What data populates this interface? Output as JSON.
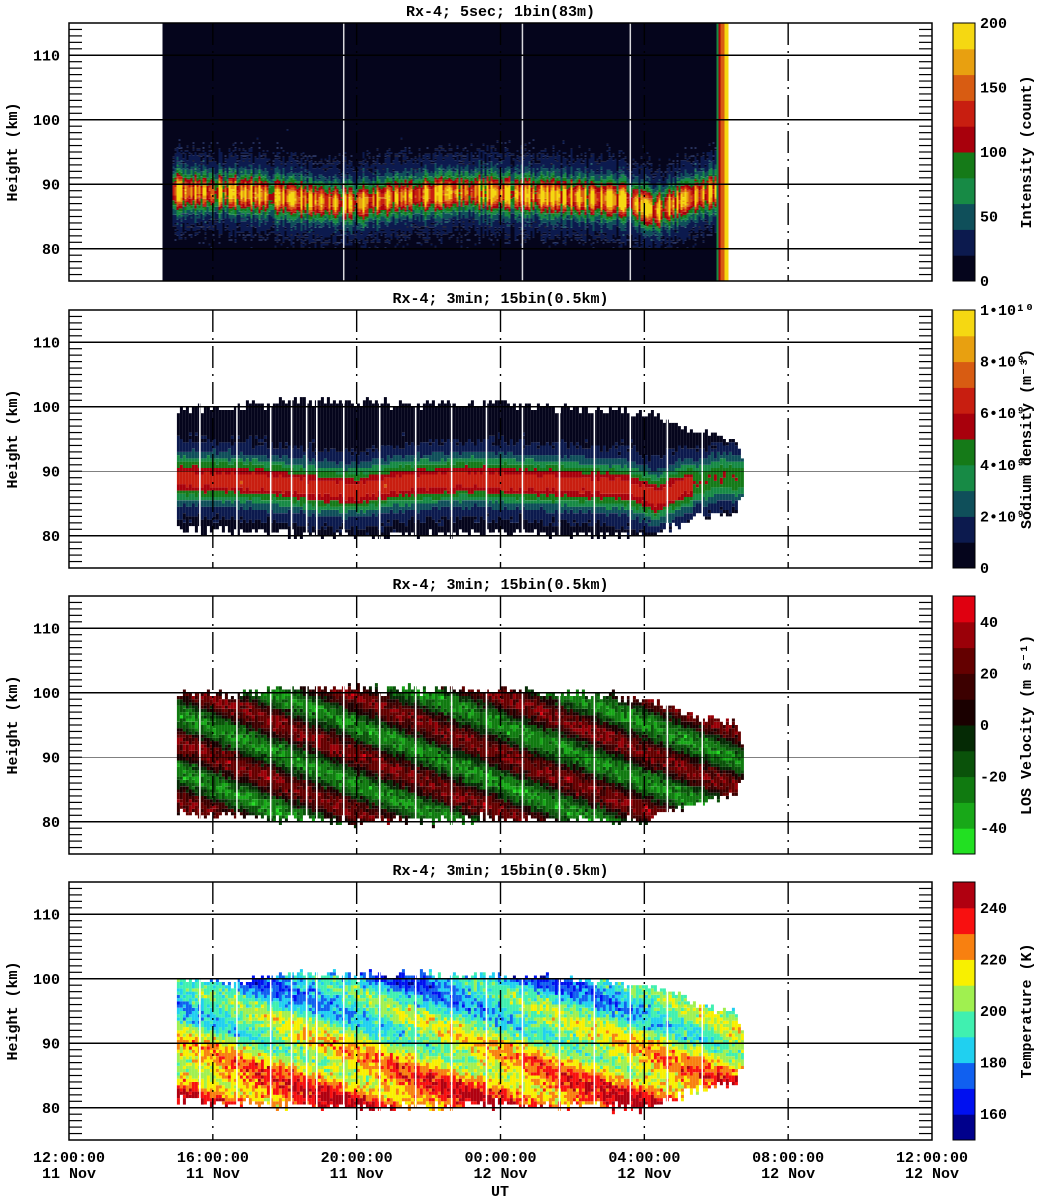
{
  "chart_data": {
    "type": "heatmap",
    "xlabel": "UT",
    "xlim_hours": [
      12,
      36
    ],
    "x_ticks": [
      {
        "hour": 12,
        "time": "12:00:00",
        "date": "11 Nov"
      },
      {
        "hour": 16,
        "time": "16:00:00",
        "date": "11 Nov"
      },
      {
        "hour": 20,
        "time": "20:00:00",
        "date": "11 Nov"
      },
      {
        "hour": 24,
        "time": "00:00:00",
        "date": "12 Nov"
      },
      {
        "hour": 28,
        "time": "04:00:00",
        "date": "12 Nov"
      },
      {
        "hour": 32,
        "time": "08:00:00",
        "date": "12 Nov"
      },
      {
        "hour": 36,
        "time": "12:00:00",
        "date": "12 Nov"
      }
    ],
    "layer_centroid_km": [
      [
        14.6,
        89
      ],
      [
        17,
        88.5
      ],
      [
        19,
        87.3
      ],
      [
        20,
        87
      ],
      [
        21,
        88
      ],
      [
        23,
        88.8
      ],
      [
        24,
        88.5
      ],
      [
        26,
        88
      ],
      [
        27.5,
        87.5
      ],
      [
        28.3,
        85.8
      ],
      [
        29,
        87.5
      ],
      [
        30,
        89
      ],
      [
        31,
        89
      ]
    ],
    "data_top_km": [
      [
        15,
        100
      ],
      [
        16.5,
        99.5
      ],
      [
        18,
        101
      ],
      [
        21,
        100.5
      ],
      [
        24,
        100.5
      ],
      [
        27,
        99.5
      ],
      [
        28.5,
        98.5
      ],
      [
        29.5,
        96
      ],
      [
        30.5,
        95
      ],
      [
        30.8,
        90
      ]
    ],
    "data_bottom_km": [
      [
        15,
        81
      ],
      [
        20,
        80
      ],
      [
        24,
        80.5
      ],
      [
        28,
        80
      ],
      [
        29,
        82
      ],
      [
        30.5,
        84
      ],
      [
        30.8,
        88
      ]
    ],
    "wave": {
      "vertical_wavelength_km": 9,
      "downward_phase_speed_km_per_h": 2.2
    },
    "panels": [
      {
        "id": "intensity",
        "title": "Rx-4;  5sec; 1bin(83m)",
        "ylabel": "Height (km)",
        "ylim": [
          75,
          115
        ],
        "yticks": [
          80,
          90,
          100,
          110
        ],
        "data_hours": [
          14.6,
          30.3
        ],
        "peak_value": 130,
        "background_value": 8,
        "gaps_hours": [
          19.64,
          24.61,
          27.61
        ],
        "colorbar": {
          "label": "Intensity (count)",
          "range": [
            0,
            200
          ],
          "ticks": [
            {
              "value": 0,
              "label": "0"
            },
            {
              "value": 50,
              "label": "50"
            },
            {
              "value": 100,
              "label": "100"
            },
            {
              "value": 150,
              "label": "150"
            },
            {
              "value": 200,
              "label": "200"
            }
          ],
          "colors": [
            "#05051c",
            "#0c1a4e",
            "#0f4f5a",
            "#178a45",
            "#157a18",
            "#a8000c",
            "#c81e10",
            "#d85c12",
            "#e8a010",
            "#f5d812"
          ]
        }
      },
      {
        "id": "density",
        "title": "Rx-4; 3min; 15bin(0.5km)",
        "ylabel": "Height (km)",
        "ylim": [
          75,
          115
        ],
        "yticks": [
          80,
          90,
          100,
          110
        ],
        "data_hours": [
          15.0,
          30.75
        ],
        "peak_value": 6500000000.0,
        "gaps_hours": [
          15.64,
          16.67,
          17.61,
          18.19,
          18.61,
          18.89,
          19.64,
          20.64,
          21.64,
          22.64,
          23.61,
          24.61,
          25.64,
          26.61,
          27.61,
          28.64,
          29.61
        ],
        "colorbar": {
          "label": "Sodium density (m⁻³)",
          "range": [
            0,
            10000000000.0
          ],
          "ticks": [
            {
              "value": 0,
              "label": "0"
            },
            {
              "value": 2000000000.0,
              "label": "2•10⁹"
            },
            {
              "value": 4000000000.0,
              "label": "4•10⁹"
            },
            {
              "value": 6000000000.0,
              "label": "6•10⁹"
            },
            {
              "value": 8000000000.0,
              "label": "8•10⁹"
            },
            {
              "value": 10000000000.0,
              "label": "1•10¹⁰"
            }
          ],
          "colors": [
            "#05051c",
            "#0c1a4e",
            "#0f4f5a",
            "#178a45",
            "#157a18",
            "#a8000c",
            "#c81e10",
            "#d85c12",
            "#e8a010",
            "#f5d812"
          ]
        }
      },
      {
        "id": "los",
        "title": "Rx-4; 3min; 15bin(0.5km)",
        "ylabel": "Height (km)",
        "ylim": [
          75,
          115
        ],
        "yticks": [
          80,
          90,
          100,
          110
        ],
        "data_hours": [
          15.0,
          30.75
        ],
        "amplitude": 28,
        "gaps_hours": [
          15.64,
          16.67,
          17.61,
          18.19,
          18.61,
          18.89,
          19.64,
          20.64,
          21.64,
          22.64,
          23.61,
          24.61,
          25.64,
          26.61,
          27.61,
          28.64,
          29.61
        ],
        "colorbar": {
          "label": "LOS Velocity (m s⁻¹)",
          "range": [
            -50,
            50
          ],
          "ticks": [
            {
              "value": -40,
              "label": "-40"
            },
            {
              "value": -20,
              "label": "-20"
            },
            {
              "value": 0,
              "label": "0"
            },
            {
              "value": 20,
              "label": "20"
            },
            {
              "value": 40,
              "label": "40"
            }
          ],
          "colors": [
            "#22e022",
            "#18a818",
            "#107a10",
            "#0a520a",
            "#052a05",
            "#1a0000",
            "#3c0000",
            "#640000",
            "#9a0008",
            "#e00010"
          ]
        }
      },
      {
        "id": "temperature",
        "title": "Rx-4; 3min; 15bin(0.5km)",
        "ylabel": "Height (km)",
        "ylim": [
          75,
          115
        ],
        "yticks": [
          80,
          90,
          100,
          110
        ],
        "data_hours": [
          15.0,
          30.75
        ],
        "mean_at_90km": 208,
        "gaps_hours": [
          15.64,
          16.67,
          17.61,
          18.19,
          18.61,
          18.89,
          19.64,
          20.64,
          21.64,
          22.64,
          23.61,
          24.61,
          25.64,
          26.61,
          27.61,
          28.64,
          29.61
        ],
        "colorbar": {
          "label": "Temperature (K)",
          "range": [
            150,
            250
          ],
          "ticks": [
            {
              "value": 160,
              "label": "160"
            },
            {
              "value": 180,
              "label": "180"
            },
            {
              "value": 200,
              "label": "200"
            },
            {
              "value": 220,
              "label": "220"
            },
            {
              "value": 240,
              "label": "240"
            }
          ],
          "colors": [
            "#00008c",
            "#0010f0",
            "#1060f0",
            "#20d0f0",
            "#40f0b0",
            "#a0f050",
            "#f8f000",
            "#f88010",
            "#f81010",
            "#b00010"
          ]
        }
      }
    ]
  }
}
